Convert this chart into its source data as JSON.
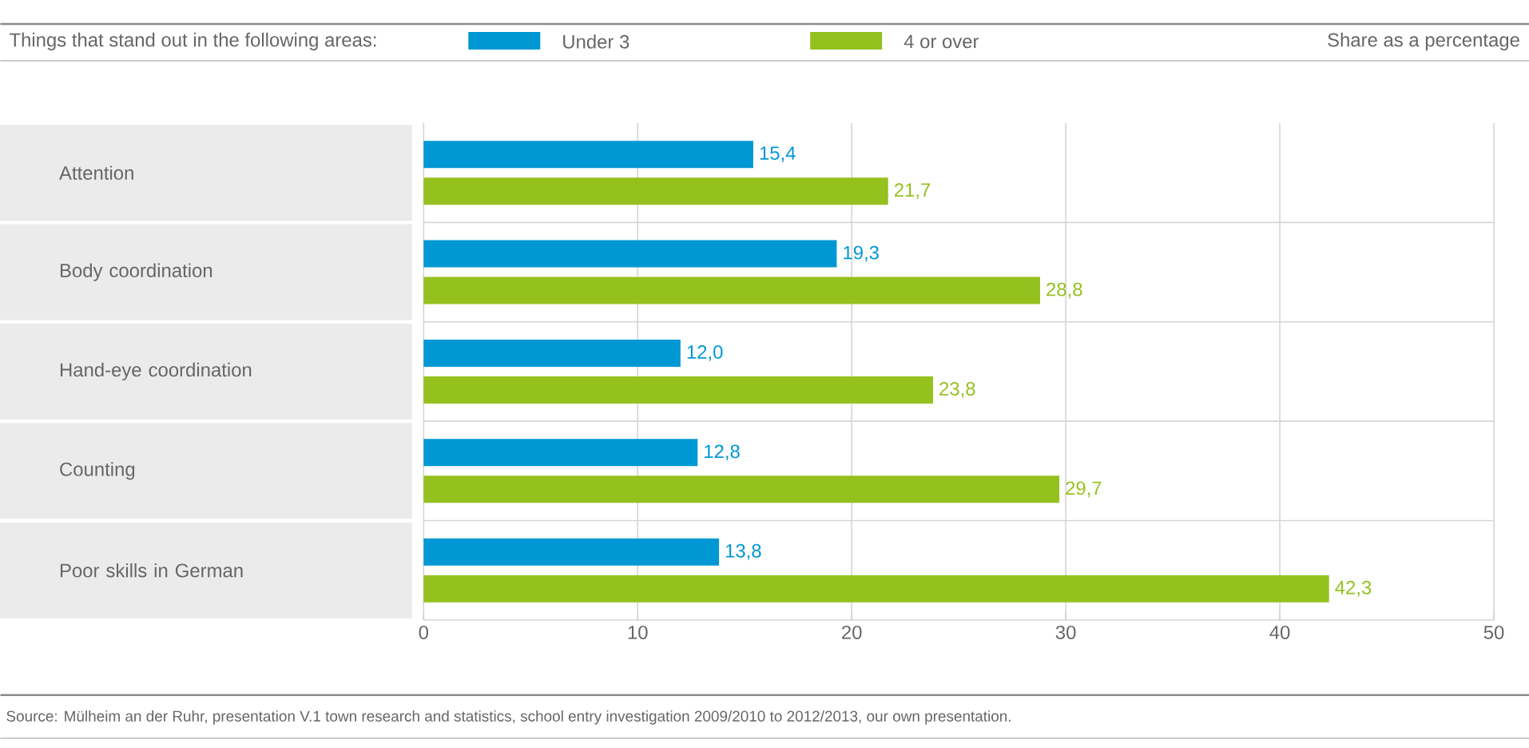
{
  "chart_data": {
    "type": "bar",
    "orientation": "horizontal",
    "legend_title": "Things that stand out in the following areas:",
    "xlabel": "Share as a percentage",
    "categories": [
      "Attention",
      "Body coordination",
      "Hand-eye coordination",
      "Counting",
      "Poor skills in German"
    ],
    "series": [
      {
        "name": "Under 3",
        "color": "#0098d4",
        "values": [
          15.4,
          19.3,
          12.0,
          12.8,
          13.8
        ],
        "value_labels": [
          "15,4",
          "19,3",
          "12,0",
          "12,8",
          "13,8"
        ]
      },
      {
        "name": "4 or over",
        "color": "#95c11f",
        "values": [
          21.7,
          28.8,
          23.8,
          29.7,
          42.3
        ],
        "value_labels": [
          "21,7",
          "28,8",
          "23,8",
          "29,7",
          "42,3"
        ]
      }
    ],
    "xlim": [
      0,
      50
    ],
    "xticks": [
      0,
      10,
      20,
      30,
      40,
      50
    ],
    "grid": "x",
    "legend": "top",
    "annotations": [
      "Source: Mülheim an der Ruhr, presentation V.1 town research and statistics, school entry investigation 2009/2010 to 2012/2013, our own presentation."
    ]
  }
}
